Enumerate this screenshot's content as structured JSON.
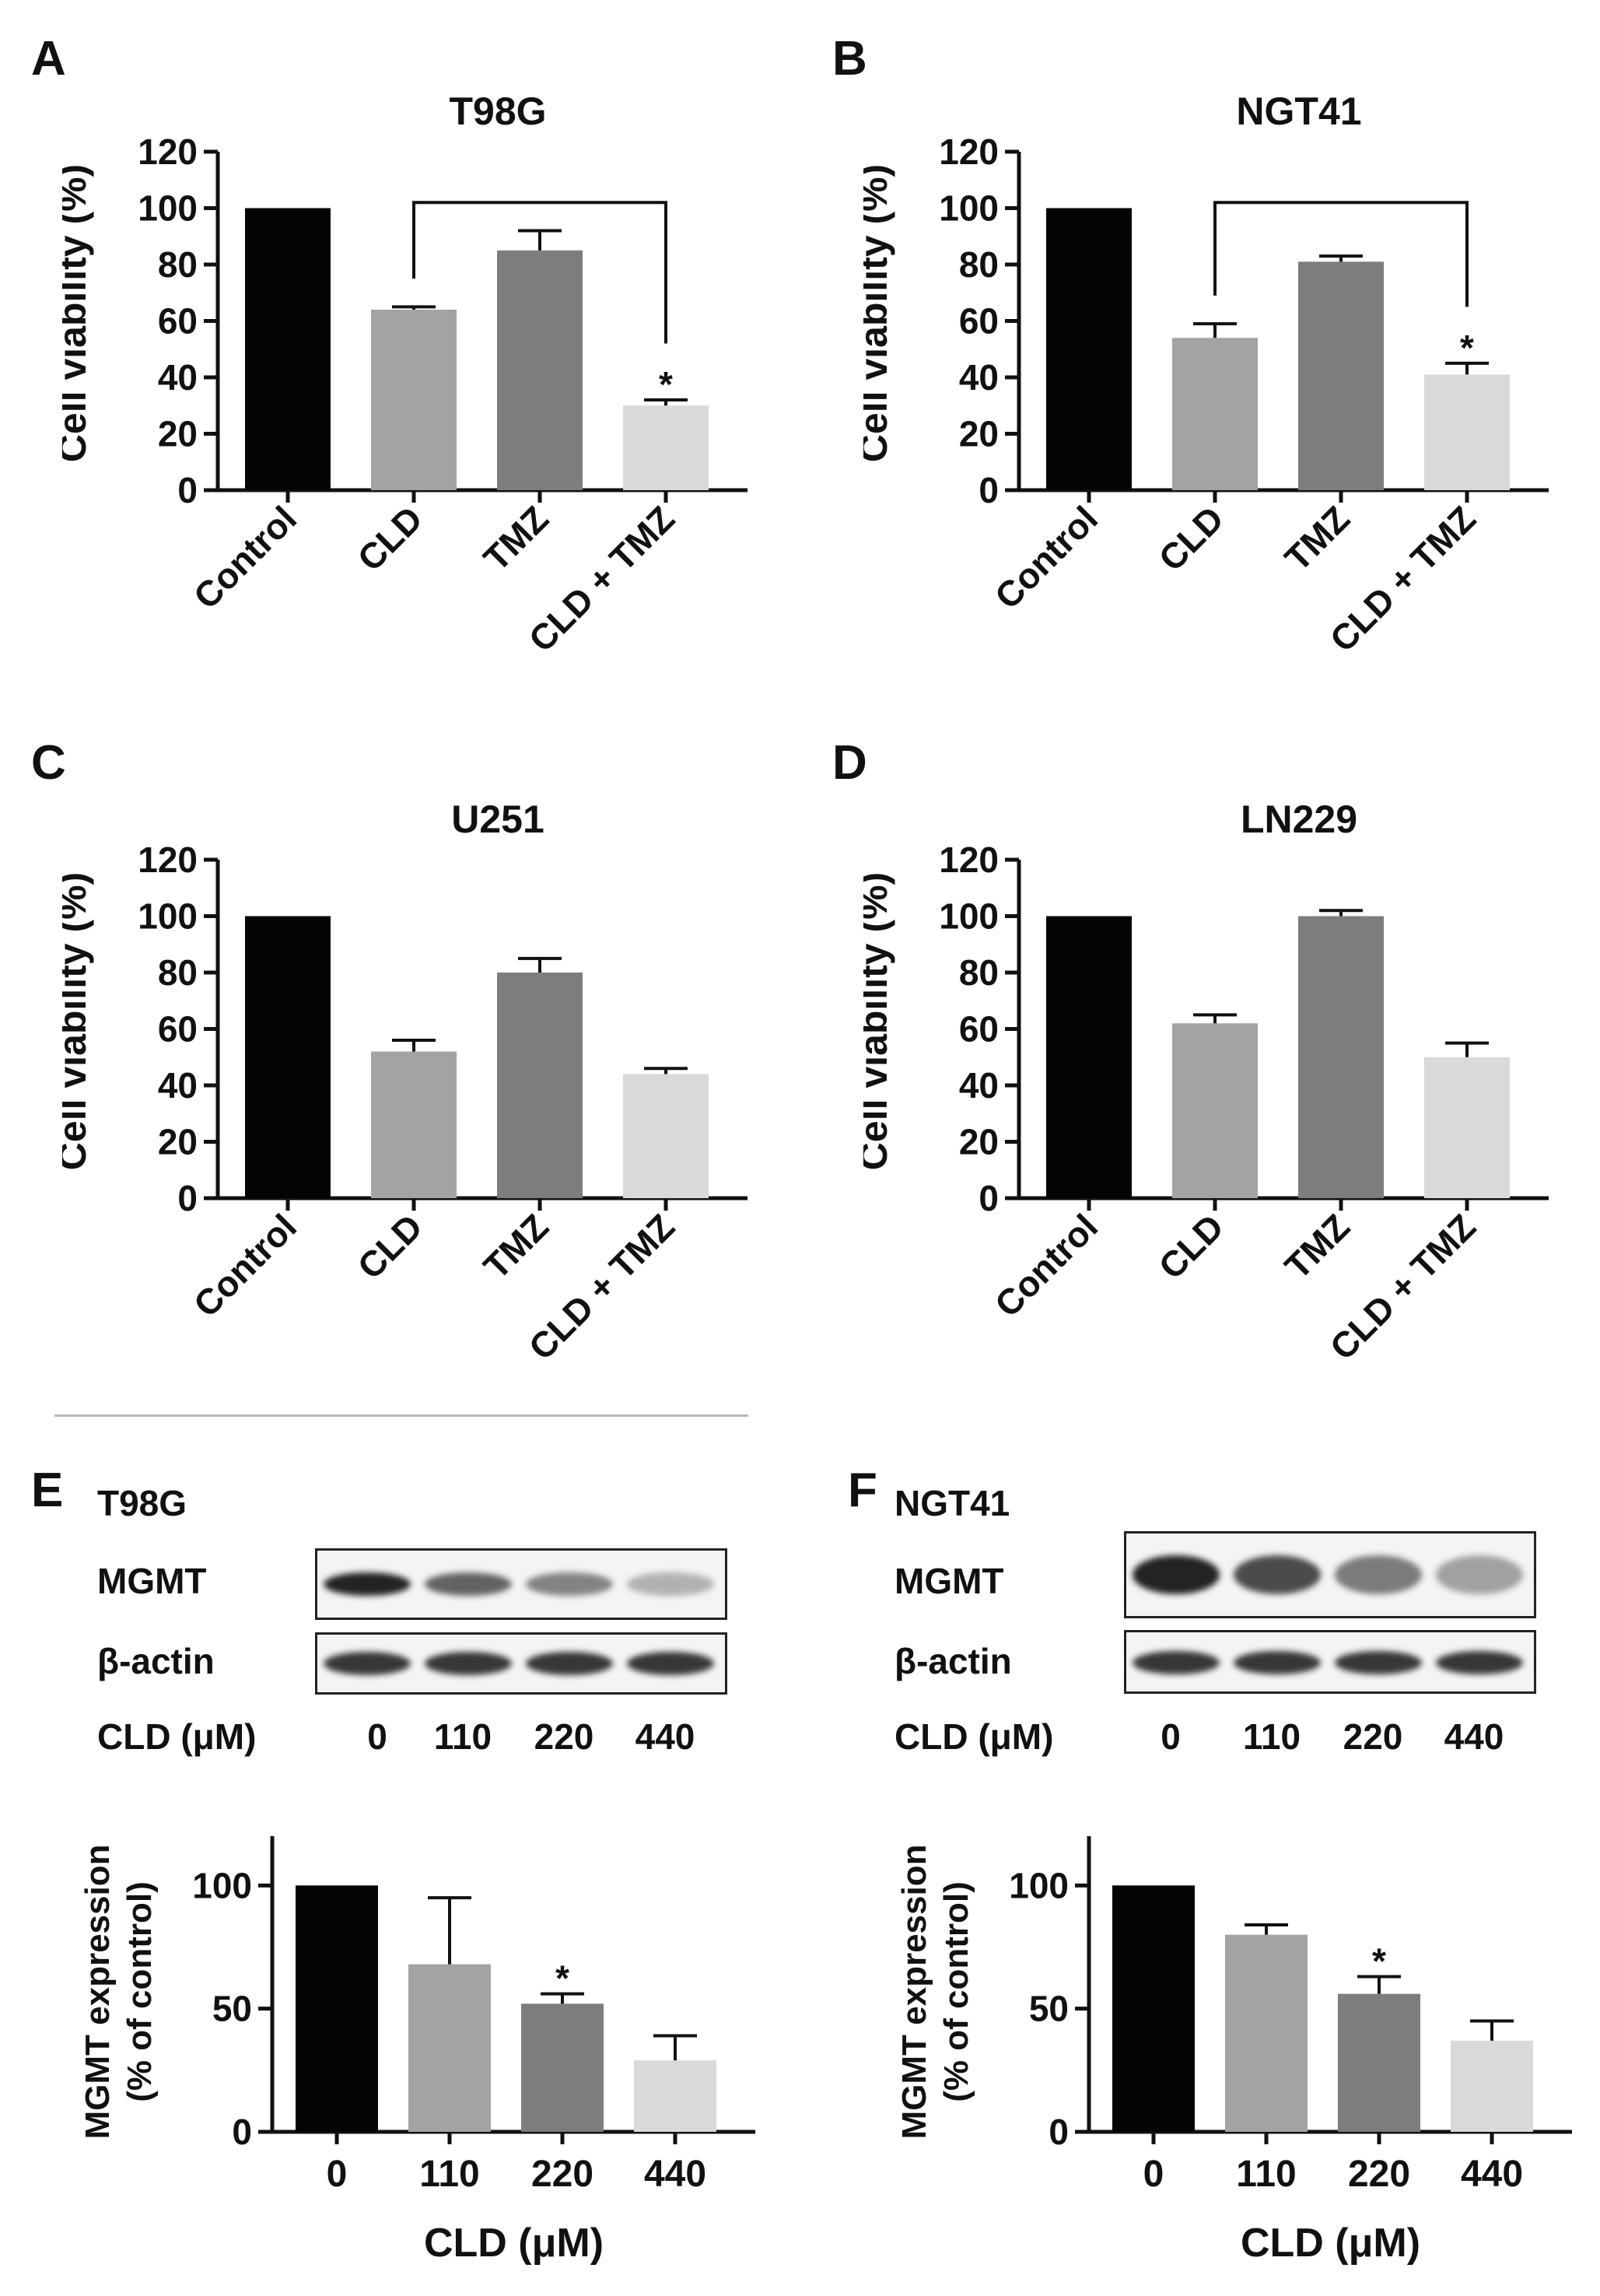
{
  "panels": {
    "A": "A",
    "B": "B",
    "C": "C",
    "D": "D",
    "E": "E",
    "F": "F"
  },
  "colors": {
    "control": "#050505",
    "cld": "#a3a3a3",
    "tmz": "#7d7d7d",
    "combo": "#d9d9d9",
    "axis": "#111111"
  },
  "chart_data": [
    {
      "id": "A",
      "type": "bar",
      "title": "T98G",
      "ylabel": "Cell viability (%)",
      "xlabel": "",
      "ylim": [
        0,
        120
      ],
      "yticks": [
        "0",
        "20",
        "40",
        "60",
        "80",
        "100",
        "120"
      ],
      "categories": [
        "Control",
        "CLD",
        "TMZ",
        "CLD + TMZ"
      ],
      "values": [
        100,
        64,
        85,
        30
      ],
      "errors": [
        0,
        1,
        7,
        2
      ],
      "significance": [
        "",
        "",
        "",
        "*"
      ],
      "bracket": [
        1,
        3
      ],
      "tick_rotation": -45
    },
    {
      "id": "B",
      "type": "bar",
      "title": "NGT41",
      "ylabel": "Cell viability (%)",
      "xlabel": "",
      "ylim": [
        0,
        120
      ],
      "yticks": [
        "0",
        "20",
        "40",
        "60",
        "80",
        "100",
        "120"
      ],
      "categories": [
        "Control",
        "CLD",
        "TMZ",
        "CLD + TMZ"
      ],
      "values": [
        100,
        54,
        81,
        41
      ],
      "errors": [
        0,
        5,
        2,
        4
      ],
      "significance": [
        "",
        "",
        "",
        "*"
      ],
      "bracket": [
        1,
        3
      ],
      "tick_rotation": -45
    },
    {
      "id": "C",
      "type": "bar",
      "title": "U251",
      "ylabel": "Cell viability (%)",
      "xlabel": "",
      "ylim": [
        0,
        120
      ],
      "yticks": [
        "0",
        "20",
        "40",
        "60",
        "80",
        "100",
        "120"
      ],
      "categories": [
        "Control",
        "CLD",
        "TMZ",
        "CLD + TMZ"
      ],
      "values": [
        100,
        52,
        80,
        44
      ],
      "errors": [
        0,
        4,
        5,
        2
      ],
      "significance": [
        "",
        "",
        "",
        ""
      ],
      "tick_rotation": -45
    },
    {
      "id": "D",
      "type": "bar",
      "title": "LN229",
      "ylabel": "Cell viability (%)",
      "xlabel": "",
      "ylim": [
        0,
        120
      ],
      "yticks": [
        "0",
        "20",
        "40",
        "60",
        "80",
        "100",
        "120"
      ],
      "categories": [
        "Control",
        "CLD",
        "TMZ",
        "CLD + TMZ"
      ],
      "values": [
        100,
        62,
        100,
        50
      ],
      "errors": [
        0,
        3,
        2,
        5
      ],
      "significance": [
        "",
        "",
        "",
        ""
      ],
      "tick_rotation": -45
    },
    {
      "id": "E",
      "type": "bar",
      "title": "",
      "ylabel_lines": [
        "MGMT expression",
        "(% of control)"
      ],
      "xlabel": "CLD (μM)",
      "ylim": [
        0,
        120
      ],
      "yticks": [
        "0",
        "50",
        "100"
      ],
      "categories": [
        "0",
        "110",
        "220",
        "440"
      ],
      "values": [
        100,
        68,
        52,
        29
      ],
      "errors": [
        0,
        27,
        4,
        10
      ],
      "significance": [
        "",
        "",
        "*",
        ""
      ],
      "tick_rotation": 0
    },
    {
      "id": "F",
      "type": "bar",
      "title": "",
      "ylabel_lines": [
        "MGMT expression",
        "(% of control)"
      ],
      "xlabel": "CLD (μM)",
      "ylim": [
        0,
        120
      ],
      "yticks": [
        "0",
        "50",
        "100"
      ],
      "categories": [
        "0",
        "110",
        "220",
        "440"
      ],
      "values": [
        100,
        80,
        56,
        37
      ],
      "errors": [
        0,
        4,
        7,
        8
      ],
      "significance": [
        "",
        "",
        "*",
        ""
      ],
      "tick_rotation": 0
    }
  ],
  "blots": [
    {
      "id": "E",
      "cell_line": "T98G",
      "rows": [
        "MGMT",
        "β-actin"
      ],
      "dose_label": "CLD (μM)",
      "lanes": [
        "0",
        "110",
        "220",
        "440"
      ],
      "mgmt_intensity": [
        1.0,
        0.68,
        0.52,
        0.29
      ]
    },
    {
      "id": "F",
      "cell_line": "NGT41",
      "rows": [
        "MGMT",
        "β-actin"
      ],
      "dose_label": "CLD (μM)",
      "lanes": [
        "0",
        "110",
        "220",
        "440"
      ],
      "mgmt_intensity": [
        1.0,
        0.8,
        0.56,
        0.37
      ]
    }
  ]
}
